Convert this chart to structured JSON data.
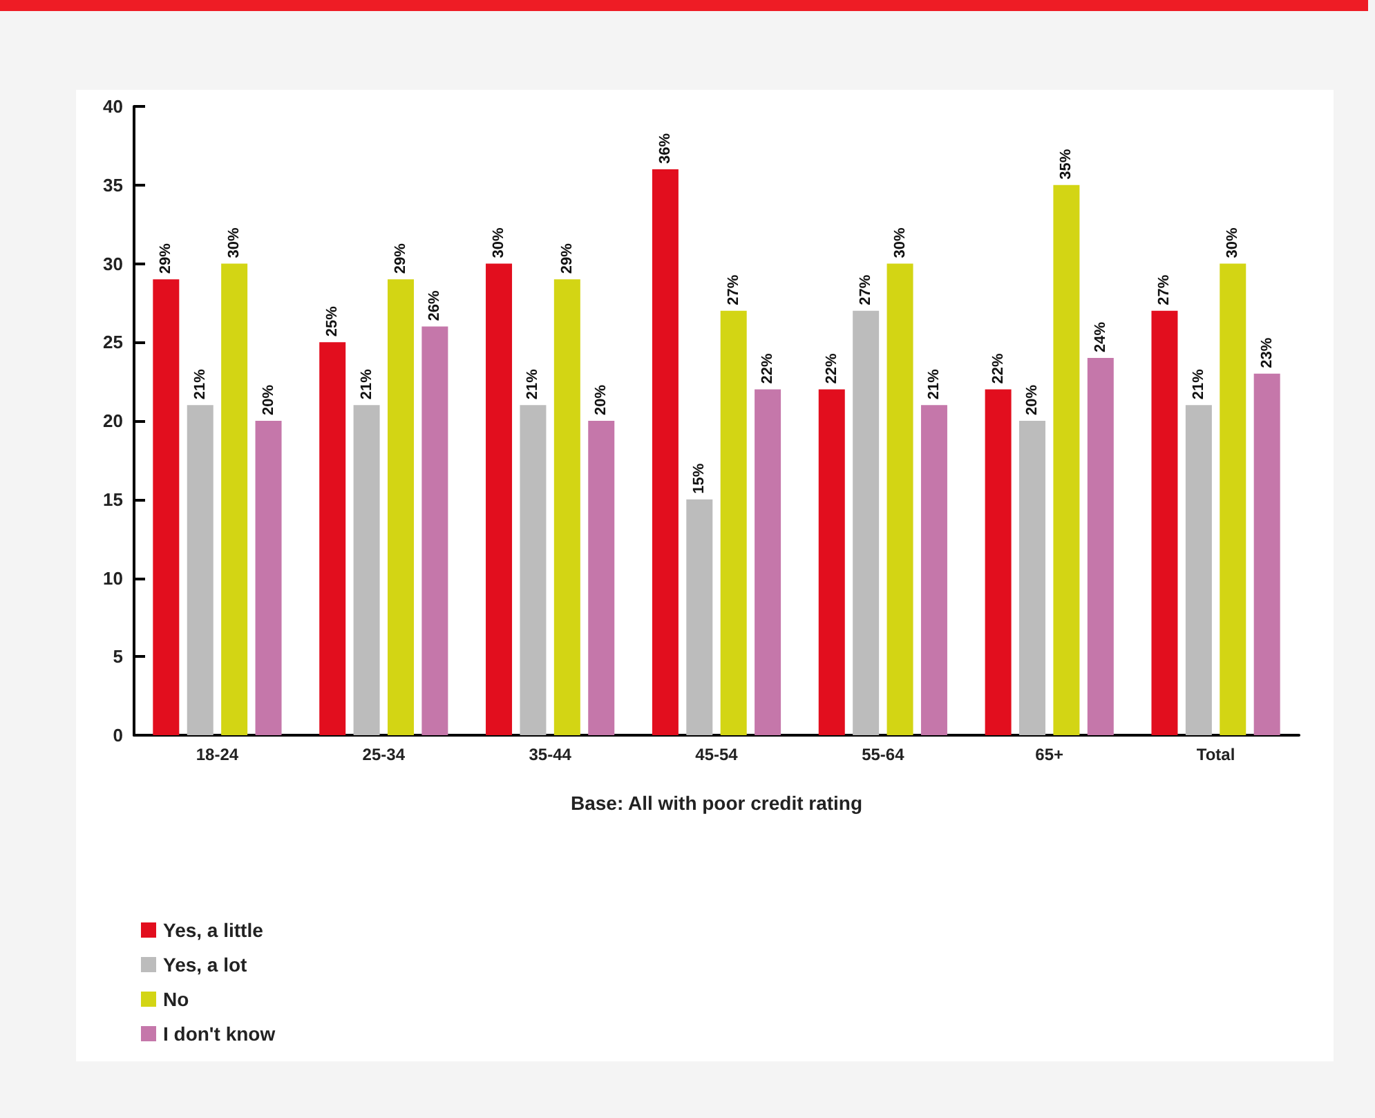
{
  "chart_data": {
    "type": "bar",
    "xlabel": "Base: All with poor credit rating",
    "categories": [
      "18-24",
      "25-34",
      "35-44",
      "45-54",
      "55-64",
      "65+",
      "Total"
    ],
    "series": [
      {
        "name": "Yes, a little",
        "color": "#e20e1e",
        "values": [
          29,
          25,
          30,
          36,
          22,
          22,
          27
        ],
        "value_labels": [
          "29%",
          "25%",
          "30%",
          "36%",
          "22%",
          "22%",
          "27%"
        ]
      },
      {
        "name": "Yes, a lot",
        "color": "#bcbcbc",
        "values": [
          21,
          21,
          21,
          15,
          27,
          20,
          21
        ],
        "value_labels": [
          "21%",
          "21%",
          "21%",
          "15%",
          "27%",
          "20%",
          "21%"
        ]
      },
      {
        "name": "No",
        "color": "#d3d514",
        "values": [
          30,
          29,
          29,
          27,
          30,
          35,
          30
        ],
        "value_labels": [
          "30%",
          "29%",
          "29%",
          "27%",
          "30%",
          "35%",
          "30%"
        ]
      },
      {
        "name": "I don't know",
        "color": "#c577aa",
        "values": [
          20,
          26,
          20,
          22,
          21,
          24,
          23
        ],
        "value_labels": [
          "20%",
          "26%",
          "20%",
          "22%",
          "21%",
          "24%",
          "23%"
        ]
      }
    ],
    "ylim": [
      0,
      40
    ],
    "yticks": [
      0,
      5,
      10,
      15,
      20,
      25,
      30,
      35,
      40
    ],
    "grid": false,
    "legend": "bottom left"
  }
}
